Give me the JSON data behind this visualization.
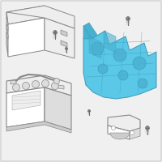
{
  "bg_color": "#f0f0f0",
  "border_color": "#cccccc",
  "tray_fill": "#5bc8e8",
  "tray_edge": "#3a9ab8",
  "tray_shadow": "#4ab0d0",
  "outline_color": "#888888",
  "outline_light": "#aaaaaa",
  "fill_white": "#ffffff",
  "fill_light": "#eeeeee",
  "fill_mid": "#dddddd",
  "fill_dark": "#cccccc",
  "screw_head": "#888888",
  "screw_shaft": "#666666",
  "figsize": [
    2.0,
    2.0
  ],
  "dpi": 100
}
